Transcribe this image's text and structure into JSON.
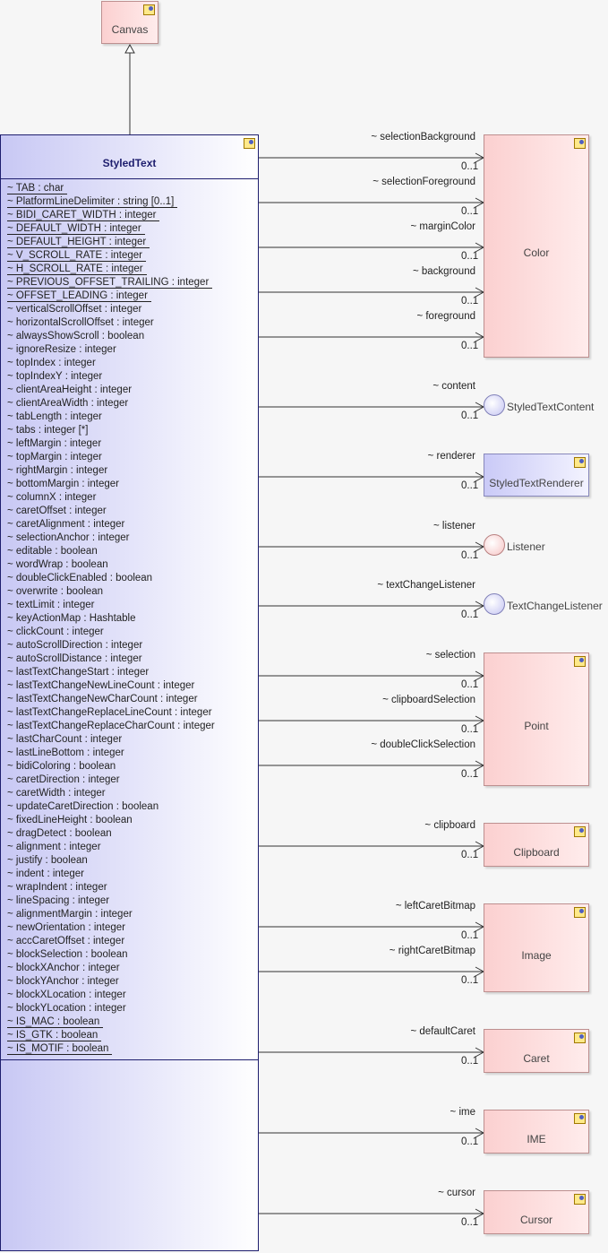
{
  "canvas": {
    "name": "Canvas"
  },
  "styled_text": {
    "name": "StyledText",
    "attributes": [
      {
        "text": "~ TAB : char",
        "static": true
      },
      {
        "text": "~ PlatformLineDelimiter : string [0..1]",
        "static": true
      },
      {
        "text": "~ BIDI_CARET_WIDTH : integer",
        "static": true
      },
      {
        "text": "~ DEFAULT_WIDTH : integer",
        "static": true
      },
      {
        "text": "~ DEFAULT_HEIGHT : integer",
        "static": true
      },
      {
        "text": "~ V_SCROLL_RATE : integer",
        "static": true
      },
      {
        "text": "~ H_SCROLL_RATE : integer",
        "static": true
      },
      {
        "text": "~ PREVIOUS_OFFSET_TRAILING : integer",
        "static": true
      },
      {
        "text": "~ OFFSET_LEADING : integer",
        "static": true
      },
      {
        "text": "~ verticalScrollOffset : integer",
        "static": false
      },
      {
        "text": "~ horizontalScrollOffset : integer",
        "static": false
      },
      {
        "text": "~ alwaysShowScroll : boolean",
        "static": false
      },
      {
        "text": "~ ignoreResize : integer",
        "static": false
      },
      {
        "text": "~ topIndex : integer",
        "static": false
      },
      {
        "text": "~ topIndexY : integer",
        "static": false
      },
      {
        "text": "~ clientAreaHeight : integer",
        "static": false
      },
      {
        "text": "~ clientAreaWidth : integer",
        "static": false
      },
      {
        "text": "~ tabLength : integer",
        "static": false
      },
      {
        "text": "~ tabs : integer [*]",
        "static": false
      },
      {
        "text": "~ leftMargin : integer",
        "static": false
      },
      {
        "text": "~ topMargin : integer",
        "static": false
      },
      {
        "text": "~ rightMargin : integer",
        "static": false
      },
      {
        "text": "~ bottomMargin : integer",
        "static": false
      },
      {
        "text": "~ columnX : integer",
        "static": false
      },
      {
        "text": "~ caretOffset : integer",
        "static": false
      },
      {
        "text": "~ caretAlignment : integer",
        "static": false
      },
      {
        "text": "~ selectionAnchor : integer",
        "static": false
      },
      {
        "text": "~ editable : boolean",
        "static": false
      },
      {
        "text": "~ wordWrap : boolean",
        "static": false
      },
      {
        "text": "~ doubleClickEnabled : boolean",
        "static": false
      },
      {
        "text": "~ overwrite : boolean",
        "static": false
      },
      {
        "text": "~ textLimit : integer",
        "static": false
      },
      {
        "text": "~ keyActionMap : Hashtable",
        "static": false
      },
      {
        "text": "~ clickCount : integer",
        "static": false
      },
      {
        "text": "~ autoScrollDirection : integer",
        "static": false
      },
      {
        "text": "~ autoScrollDistance : integer",
        "static": false
      },
      {
        "text": "~ lastTextChangeStart : integer",
        "static": false
      },
      {
        "text": "~ lastTextChangeNewLineCount : integer",
        "static": false
      },
      {
        "text": "~ lastTextChangeNewCharCount : integer",
        "static": false
      },
      {
        "text": "~ lastTextChangeReplaceLineCount : integer",
        "static": false
      },
      {
        "text": "~ lastTextChangeReplaceCharCount : integer",
        "static": false
      },
      {
        "text": "~ lastCharCount : integer",
        "static": false
      },
      {
        "text": "~ lastLineBottom : integer",
        "static": false
      },
      {
        "text": "~ bidiColoring : boolean",
        "static": false
      },
      {
        "text": "~ caretDirection : integer",
        "static": false
      },
      {
        "text": "~ caretWidth : integer",
        "static": false
      },
      {
        "text": "~ updateCaretDirection : boolean",
        "static": false
      },
      {
        "text": "~ fixedLineHeight : boolean",
        "static": false
      },
      {
        "text": "~ dragDetect : boolean",
        "static": false
      },
      {
        "text": "~ alignment : integer",
        "static": false
      },
      {
        "text": "~ justify : boolean",
        "static": false
      },
      {
        "text": "~ indent : integer",
        "static": false
      },
      {
        "text": "~ wrapIndent : integer",
        "static": false
      },
      {
        "text": "~ lineSpacing : integer",
        "static": false
      },
      {
        "text": "~ alignmentMargin : integer",
        "static": false
      },
      {
        "text": "~ newOrientation : integer",
        "static": false
      },
      {
        "text": "~ accCaretOffset : integer",
        "static": false
      },
      {
        "text": "~ blockSelection : boolean",
        "static": false
      },
      {
        "text": "~ blockXAnchor : integer",
        "static": false
      },
      {
        "text": "~ blockYAnchor : integer",
        "static": false
      },
      {
        "text": "~ blockXLocation : integer",
        "static": false
      },
      {
        "text": "~ blockYLocation : integer",
        "static": false
      },
      {
        "text": "~ IS_MAC : boolean",
        "static": true
      },
      {
        "text": "~ IS_GTK : boolean",
        "static": true
      },
      {
        "text": "~ IS_MOTIF : boolean",
        "static": true
      }
    ]
  },
  "targets": {
    "color": "Color",
    "styled_text_content": "StyledTextContent",
    "styled_text_renderer": "StyledTextRenderer",
    "listener": "Listener",
    "text_change_listener": "TextChangeListener",
    "point": "Point",
    "clipboard": "Clipboard",
    "image": "Image",
    "caret": "Caret",
    "ime": "IME",
    "cursor": "Cursor"
  },
  "associations": [
    {
      "role": "~ selectionBackground",
      "multiplicity": "0..1"
    },
    {
      "role": "~ selectionForeground",
      "multiplicity": "0..1"
    },
    {
      "role": "~ marginColor",
      "multiplicity": "0..1"
    },
    {
      "role": "~ background",
      "multiplicity": "0..1"
    },
    {
      "role": "~ foreground",
      "multiplicity": "0..1"
    },
    {
      "role": "~ content",
      "multiplicity": "0..1"
    },
    {
      "role": "~ renderer",
      "multiplicity": "0..1"
    },
    {
      "role": "~ listener",
      "multiplicity": "0..1"
    },
    {
      "role": "~ textChangeListener",
      "multiplicity": "0..1"
    },
    {
      "role": "~ selection",
      "multiplicity": "0..1"
    },
    {
      "role": "~ clipboardSelection",
      "multiplicity": "0..1"
    },
    {
      "role": "~ doubleClickSelection",
      "multiplicity": "0..1"
    },
    {
      "role": "~ clipboard",
      "multiplicity": "0..1"
    },
    {
      "role": "~ leftCaretBitmap",
      "multiplicity": "0..1"
    },
    {
      "role": "~ rightCaretBitmap",
      "multiplicity": "0..1"
    },
    {
      "role": "~ defaultCaret",
      "multiplicity": "0..1"
    },
    {
      "role": "~ ime",
      "multiplicity": "0..1"
    },
    {
      "role": "~ cursor",
      "multiplicity": "0..1"
    }
  ]
}
